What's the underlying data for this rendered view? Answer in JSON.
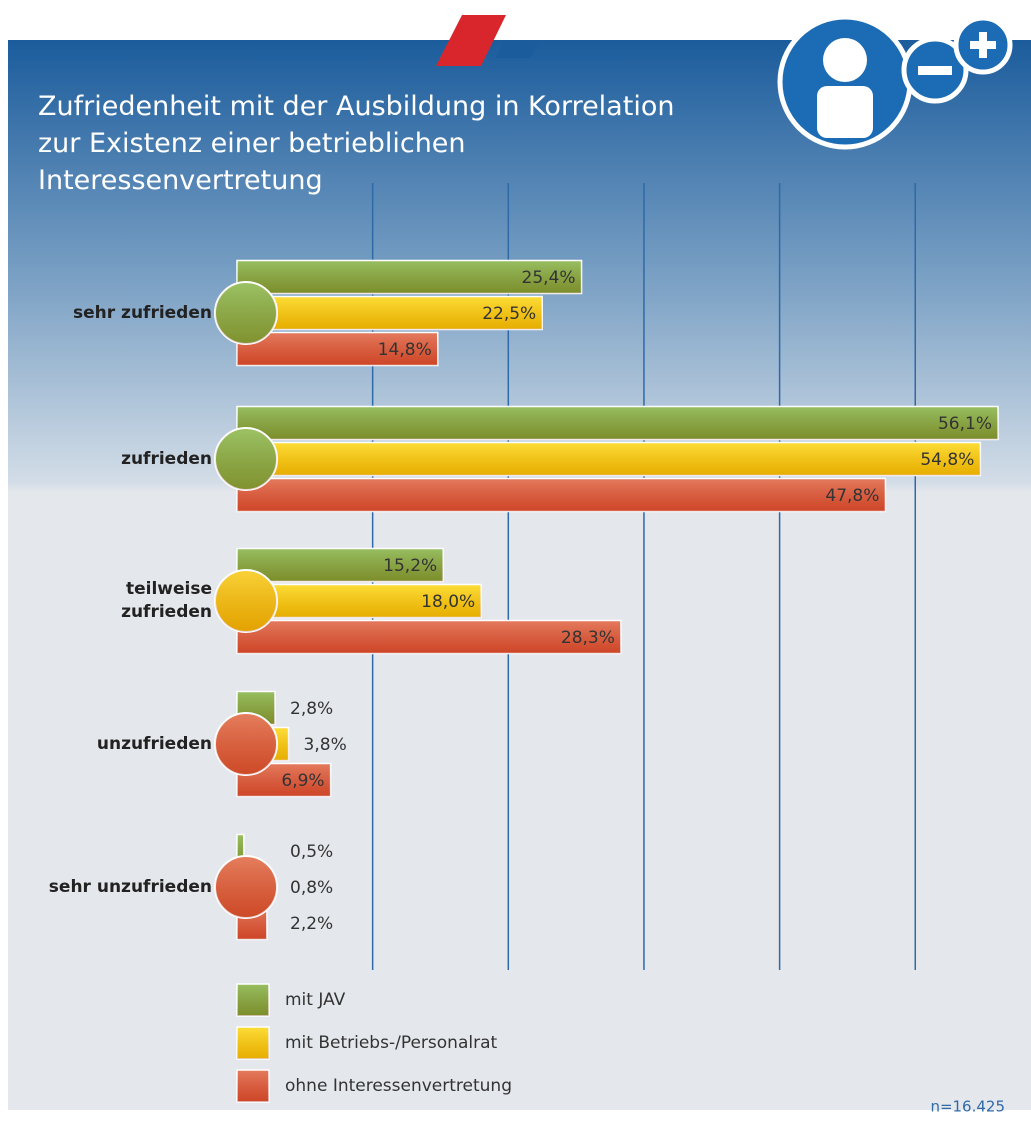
{
  "chart_data": {
    "type": "bar",
    "orientation": "horizontal",
    "title": "Zufriedenheit mit der Ausbildung in Korrelation\nzur Existenz einer betrieblichen\nInteressenvertretung",
    "categories": [
      "sehr zufrieden",
      "zufrieden",
      "teilweise\nzufrieden",
      "unzufrieden",
      "sehr unzufrieden"
    ],
    "category_colors": [
      "#7fb23a",
      "#7fb23a",
      "#f7c600",
      "#dd5a30",
      "#dd5a30"
    ],
    "series": [
      {
        "name": "mit JAV",
        "color": "#7aad35",
        "values": [
          25.4,
          56.1,
          15.2,
          2.8,
          0.5
        ],
        "value_labels": [
          "25,4%",
          "56,1%",
          "15,2%",
          "2,8%",
          "0,5%"
        ]
      },
      {
        "name": "mit Betriebs-/Personalrat",
        "color": "#fcd400",
        "values": [
          22.5,
          54.8,
          18.0,
          3.8,
          0.8
        ],
        "value_labels": [
          "22,5%",
          "54,8%",
          "18,0%",
          "3,8%",
          "0,8%"
        ]
      },
      {
        "name": "ohne Interessenvertretung",
        "color": "#dd5530",
        "values": [
          14.8,
          47.8,
          28.3,
          6.9,
          2.2
        ],
        "value_labels": [
          "14,8%",
          "47,8%",
          "28,3%",
          "6,9%",
          "2,2%"
        ]
      }
    ],
    "xlim": [
      0,
      57.5
    ],
    "xticks": [
      10,
      20,
      30,
      40,
      50
    ],
    "grid": true,
    "note": "n=16.425"
  }
}
